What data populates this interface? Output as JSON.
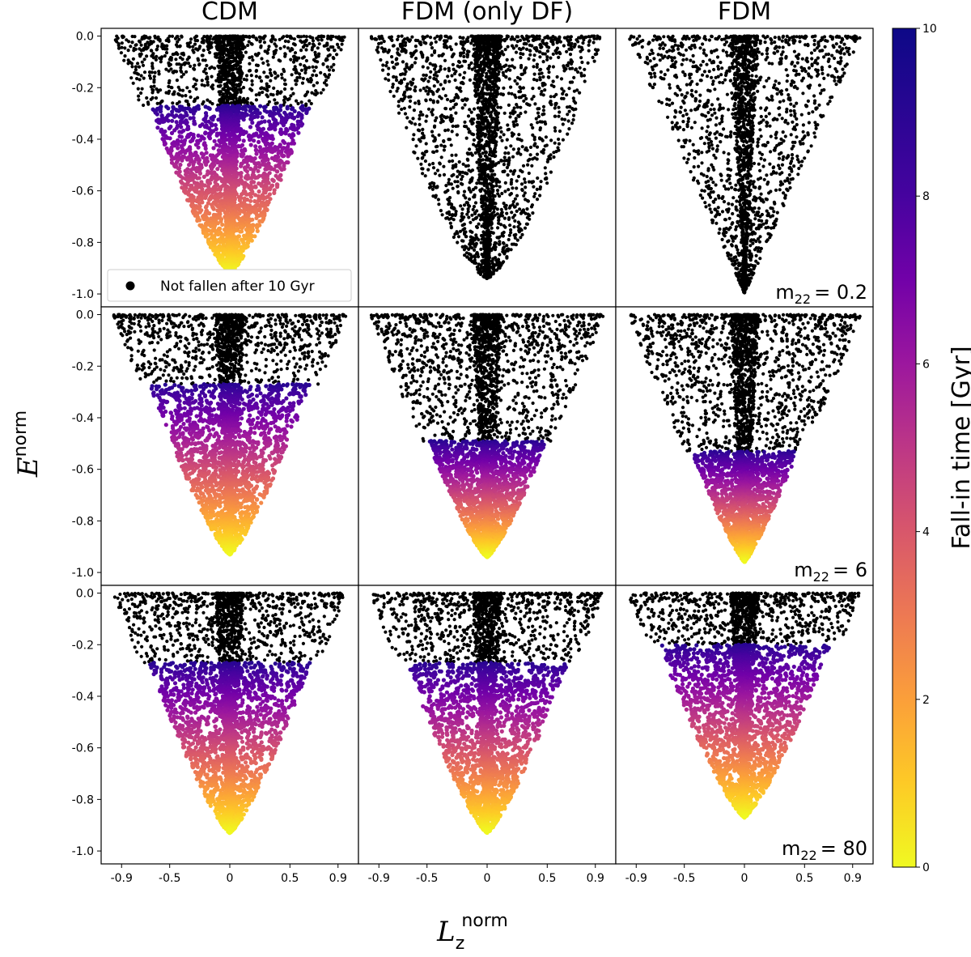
{
  "chart_data": {
    "type": "scatter",
    "columns": [
      "CDM",
      "FDM (only DF)",
      "FDM"
    ],
    "row_labels": [
      "m22 = 0.2",
      "m22 = 6",
      "m22 = 80"
    ],
    "xlabel": "L_z^norm",
    "ylabel": "E^norm",
    "xlim": [
      -1.07,
      1.07
    ],
    "ylim": [
      -1.05,
      0.03
    ],
    "xticks": [
      -0.9,
      -0.5,
      0,
      0.5,
      0.9
    ],
    "xtick_labels": [
      "-0.9",
      "-0.5",
      "0",
      "0.5",
      "0.9"
    ],
    "yticks": [
      0.0,
      -0.2,
      -0.4,
      -0.6,
      -0.8,
      -1.0
    ],
    "ytick_labels": [
      "0.0",
      "-0.2",
      "-0.4",
      "-0.6",
      "-0.8",
      "-1.0"
    ],
    "legend": {
      "label": "Not fallen after 10 Gyr",
      "color": "#000000",
      "position": "lower-left"
    },
    "colorbar": {
      "label": "Fall-in time [Gyr]",
      "colormap": "plasma_r",
      "range": [
        0,
        10
      ],
      "ticks": [
        0,
        2,
        4,
        6,
        8,
        10
      ],
      "tick_labels": [
        "0",
        "2",
        "4",
        "6",
        "8",
        "10"
      ]
    },
    "panels": [
      {
        "row": 0,
        "col": 0,
        "emin": -0.92,
        "colored_top": -0.27,
        "width_power": 0.55
      },
      {
        "row": 0,
        "col": 1,
        "emin": -0.94,
        "colored_top": null,
        "width_power": 0.5
      },
      {
        "row": 0,
        "col": 2,
        "emin": -1.0,
        "colored_top": null,
        "width_power": 1.0
      },
      {
        "row": 1,
        "col": 0,
        "emin": -0.93,
        "colored_top": -0.27,
        "width_power": 0.55
      },
      {
        "row": 1,
        "col": 1,
        "emin": -0.94,
        "colored_top": -0.49,
        "width_power": 0.55
      },
      {
        "row": 1,
        "col": 2,
        "emin": -0.96,
        "colored_top": -0.53,
        "width_power": 0.6
      },
      {
        "row": 2,
        "col": 0,
        "emin": -0.93,
        "colored_top": -0.27,
        "width_power": 0.55
      },
      {
        "row": 2,
        "col": 1,
        "emin": -0.93,
        "colored_top": -0.27,
        "width_power": 0.55
      },
      {
        "row": 2,
        "col": 2,
        "emin": -0.87,
        "colored_top": -0.2,
        "width_power": 0.55
      }
    ]
  },
  "text": {
    "col_titles": [
      "CDM",
      "FDM (only DF)",
      "FDM"
    ],
    "x_axis_main": "L",
    "x_axis_sub": "z",
    "x_axis_sup": "norm",
    "y_axis_main": "E",
    "y_axis_sup": "norm",
    "mass_prefix": "m",
    "mass_sub": "22",
    "mass_values": [
      "= 0.2",
      "= 6",
      "= 80"
    ]
  }
}
